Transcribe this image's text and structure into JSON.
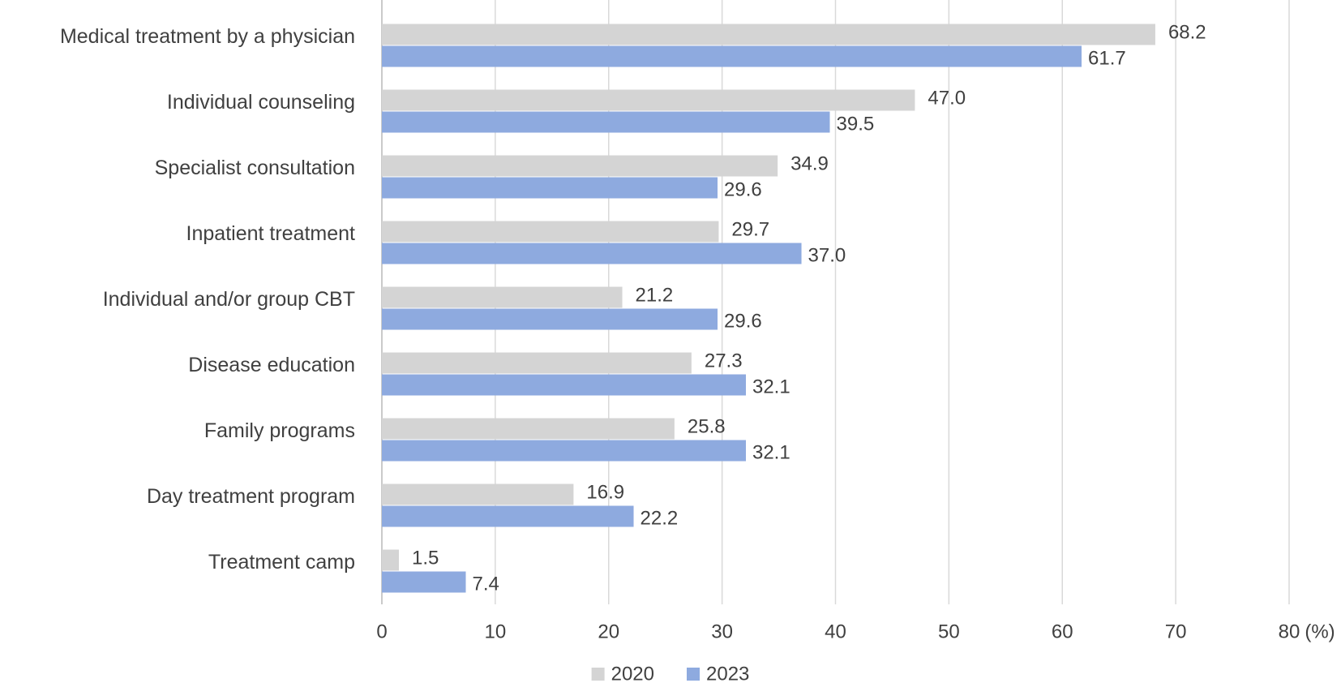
{
  "chart_data": {
    "type": "barh",
    "categories": [
      "Medical treatment by a physician",
      "Individual counseling",
      "Specialist consultation",
      "Inpatient treatment",
      "Individual and/or group CBT",
      "Disease education",
      "Family programs",
      "Day treatment program",
      "Treatment camp"
    ],
    "series": [
      {
        "name": "2020",
        "color": "#d4d4d4",
        "values": [
          68.2,
          47,
          34.9,
          29.7,
          21.2,
          27.3,
          25.8,
          16.9,
          1.5
        ],
        "value_labels": [
          "68.2",
          "47.0",
          "34.9",
          "29.7",
          "21.2",
          "27.3",
          "25.8",
          "16.9",
          "1.5"
        ]
      },
      {
        "name": "2023",
        "color": "#8eaadf",
        "values": [
          61.7,
          39.5,
          29.6,
          37,
          29.6,
          32.1,
          32.1,
          22.2,
          7.4
        ],
        "value_labels": [
          "61.7",
          "39.5",
          "29.6",
          "37.0",
          "29.6",
          "32.1",
          "32.1",
          "22.2",
          "7.4"
        ]
      }
    ],
    "x_label": "(%)",
    "xlim": [
      0,
      80
    ],
    "xticks": [
      0,
      10,
      20,
      30,
      40,
      50,
      60,
      70,
      80
    ],
    "grid": true,
    "legend": "bottom"
  }
}
